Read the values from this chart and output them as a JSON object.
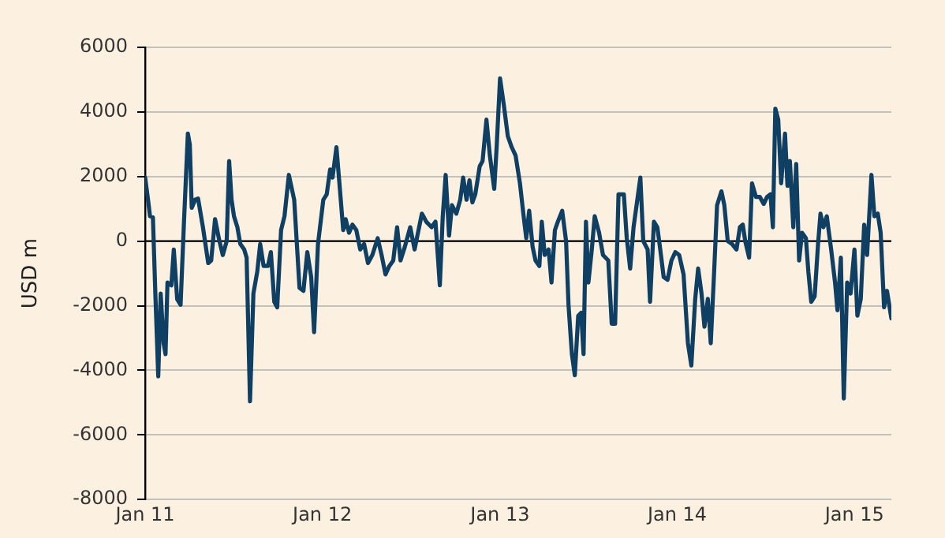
{
  "chart_data": {
    "type": "line",
    "ylabel": "USD m",
    "xlim": [
      "2011-01-01",
      "2015-03-18"
    ],
    "xticks": [
      {
        "value": "2011-01-01",
        "label": "Jan 11"
      },
      {
        "value": "2012-01-01",
        "label": "Jan 12"
      },
      {
        "value": "2013-01-01",
        "label": "Jan 13"
      },
      {
        "value": "2014-01-01",
        "label": "Jan 14"
      },
      {
        "value": "2015-01-01",
        "label": "Jan 15"
      }
    ],
    "ylim": [
      -8000,
      6000
    ],
    "yticks": [
      -8000,
      -6000,
      -4000,
      -2000,
      0,
      2000,
      4000,
      6000
    ],
    "grid": "y",
    "legend": false,
    "marker": "none",
    "line_style": "solid",
    "ref_lines": [
      {
        "axis": "y",
        "value": 0,
        "color": "#000000"
      }
    ],
    "x": [
      "2011-01-01",
      "2011-01-07",
      "2011-01-11",
      "2011-01-17",
      "2011-01-22",
      "2011-01-28",
      "2011-02-02",
      "2011-02-08",
      "2011-02-12",
      "2011-02-16",
      "2011-02-24",
      "2011-03-01",
      "2011-03-08",
      "2011-03-15",
      "2011-03-22",
      "2011-03-30",
      "2011-04-03",
      "2011-04-07",
      "2011-04-14",
      "2011-04-20",
      "2011-04-30",
      "2011-05-11",
      "2011-05-17",
      "2011-05-25",
      "2011-06-03",
      "2011-06-10",
      "2011-06-18",
      "2011-06-23",
      "2011-06-28",
      "2011-07-03",
      "2011-07-10",
      "2011-07-16",
      "2011-07-24",
      "2011-07-29",
      "2011-08-05",
      "2011-08-12",
      "2011-08-20",
      "2011-08-26",
      "2011-09-02",
      "2011-09-11",
      "2011-09-17",
      "2011-09-24",
      "2011-09-30",
      "2011-10-08",
      "2011-10-15",
      "2011-10-24",
      "2011-11-04",
      "2011-11-15",
      "2011-11-23",
      "2011-12-01",
      "2011-12-09",
      "2011-12-15",
      "2011-12-23",
      "2012-01-03",
      "2012-01-10",
      "2012-01-17",
      "2012-01-22",
      "2012-01-30",
      "2012-02-07",
      "2012-02-13",
      "2012-02-18",
      "2012-02-25",
      "2012-03-03",
      "2012-03-11",
      "2012-03-19",
      "2012-03-27",
      "2012-04-04",
      "2012-04-13",
      "2012-04-24",
      "2012-05-02",
      "2012-05-10",
      "2012-05-18",
      "2012-05-26",
      "2012-06-03",
      "2012-06-10",
      "2012-06-19",
      "2012-06-30",
      "2012-07-09",
      "2012-07-16",
      "2012-07-24",
      "2012-08-02",
      "2012-08-13",
      "2012-08-21",
      "2012-08-30",
      "2012-09-05",
      "2012-09-11",
      "2012-09-18",
      "2012-09-24",
      "2012-10-03",
      "2012-10-11",
      "2012-10-17",
      "2012-10-24",
      "2012-10-30",
      "2012-11-05",
      "2012-11-11",
      "2012-11-20",
      "2012-11-26",
      "2012-12-04",
      "2012-12-11",
      "2012-12-20",
      "2012-12-25",
      "2013-01-01",
      "2013-01-09",
      "2013-01-17",
      "2013-01-25",
      "2013-02-02",
      "2013-02-11",
      "2013-02-18",
      "2013-02-24",
      "2013-03-02",
      "2013-03-09",
      "2013-03-15",
      "2013-03-23",
      "2013-03-28",
      "2013-04-03",
      "2013-04-11",
      "2013-04-17",
      "2013-04-24",
      "2013-04-30",
      "2013-05-09",
      "2013-05-17",
      "2013-05-22",
      "2013-05-29",
      "2013-06-04",
      "2013-06-11",
      "2013-06-17",
      "2013-06-22",
      "2013-06-27",
      "2013-07-02",
      "2013-07-09",
      "2013-07-15",
      "2013-07-24",
      "2013-08-01",
      "2013-08-12",
      "2013-08-19",
      "2013-08-26",
      "2013-09-02",
      "2013-09-13",
      "2013-09-19",
      "2013-09-26",
      "2013-10-03",
      "2013-10-10",
      "2013-10-17",
      "2013-10-23",
      "2013-11-01",
      "2013-11-06",
      "2013-11-14",
      "2013-11-21",
      "2013-11-27",
      "2013-12-04",
      "2013-12-12",
      "2013-12-20",
      "2013-12-28",
      "2014-01-05",
      "2014-01-14",
      "2014-01-23",
      "2014-01-30",
      "2014-02-07",
      "2014-02-13",
      "2014-02-20",
      "2014-02-26",
      "2014-03-05",
      "2014-03-11",
      "2014-03-18",
      "2014-03-24",
      "2014-04-02",
      "2014-04-08",
      "2014-04-15",
      "2014-04-24",
      "2014-05-03",
      "2014-05-10",
      "2014-05-16",
      "2014-05-21",
      "2014-05-29",
      "2014-06-04",
      "2014-06-12",
      "2014-06-20",
      "2014-06-28",
      "2014-07-05",
      "2014-07-12",
      "2014-07-17",
      "2014-07-22",
      "2014-07-28",
      "2014-08-03",
      "2014-08-11",
      "2014-08-16",
      "2014-08-21",
      "2014-08-28",
      "2014-09-03",
      "2014-09-09",
      "2014-09-15",
      "2014-09-23",
      "2014-09-28",
      "2014-10-04",
      "2014-10-11",
      "2014-10-18",
      "2014-10-23",
      "2014-10-29",
      "2014-11-05",
      "2014-11-14",
      "2014-11-22",
      "2014-11-27",
      "2014-12-04",
      "2014-12-10",
      "2014-12-17",
      "2014-12-24",
      "2015-01-01",
      "2015-01-07",
      "2015-01-14",
      "2015-01-21",
      "2015-01-27",
      "2015-02-05",
      "2015-02-11",
      "2015-02-18",
      "2015-02-24",
      "2015-03-03",
      "2015-03-09",
      "2015-03-18"
    ],
    "series": [
      {
        "color": "#0f3f63",
        "values": [
          1970,
          1280,
          770,
          740,
          -1620,
          -4190,
          -1620,
          -3160,
          -3500,
          -1280,
          -1370,
          -260,
          -1800,
          -1970,
          600,
          3330,
          2990,
          1030,
          1280,
          1320,
          430,
          -680,
          -600,
          680,
          0,
          -430,
          0,
          2480,
          1280,
          770,
          430,
          -90,
          -260,
          -510,
          -4960,
          -1620,
          -940,
          -90,
          -770,
          -770,
          -340,
          -1880,
          -2050,
          340,
          770,
          2050,
          1280,
          -1450,
          -1540,
          -340,
          -1110,
          -2820,
          -90,
          1280,
          1450,
          2220,
          1970,
          2910,
          1450,
          340,
          680,
          260,
          510,
          340,
          -260,
          -90,
          -680,
          -430,
          90,
          -430,
          -1030,
          -770,
          -600,
          430,
          -600,
          -170,
          430,
          -260,
          260,
          850,
          600,
          430,
          600,
          -1370,
          770,
          2050,
          170,
          1110,
          850,
          1280,
          1970,
          1280,
          1880,
          1200,
          1450,
          2310,
          2480,
          3760,
          2650,
          1620,
          2910,
          5040,
          4190,
          3250,
          2910,
          2650,
          1790,
          850,
          90,
          940,
          -170,
          -600,
          -770,
          600,
          -430,
          -260,
          -1280,
          340,
          600,
          940,
          0,
          -1970,
          -3500,
          -4150,
          -2310,
          -2220,
          -3500,
          600,
          -1280,
          -260,
          770,
          260,
          -430,
          -600,
          -2560,
          -2560,
          1450,
          1450,
          90,
          -850,
          430,
          1200,
          1970,
          0,
          -260,
          -1880,
          600,
          430,
          -260,
          -1110,
          -1200,
          -600,
          -340,
          -430,
          -1030,
          -3160,
          -3850,
          -1790,
          -850,
          -1620,
          -2650,
          -1790,
          -3160,
          -940,
          1110,
          1540,
          1110,
          0,
          -90,
          -260,
          430,
          510,
          0,
          -510,
          1790,
          1370,
          1370,
          1150,
          1370,
          1450,
          430,
          4100,
          3760,
          1790,
          3330,
          1710,
          2480,
          430,
          2390,
          -600,
          260,
          90,
          -940,
          -1880,
          -1710,
          -90,
          850,
          430,
          770,
          -260,
          -1280,
          -2140,
          -510,
          -4870,
          -1280,
          -1620,
          -260,
          -2310,
          -1790,
          510,
          -430,
          2050,
          770,
          850,
          260,
          -2050,
          -1540,
          -2390
        ]
      }
    ]
  }
}
